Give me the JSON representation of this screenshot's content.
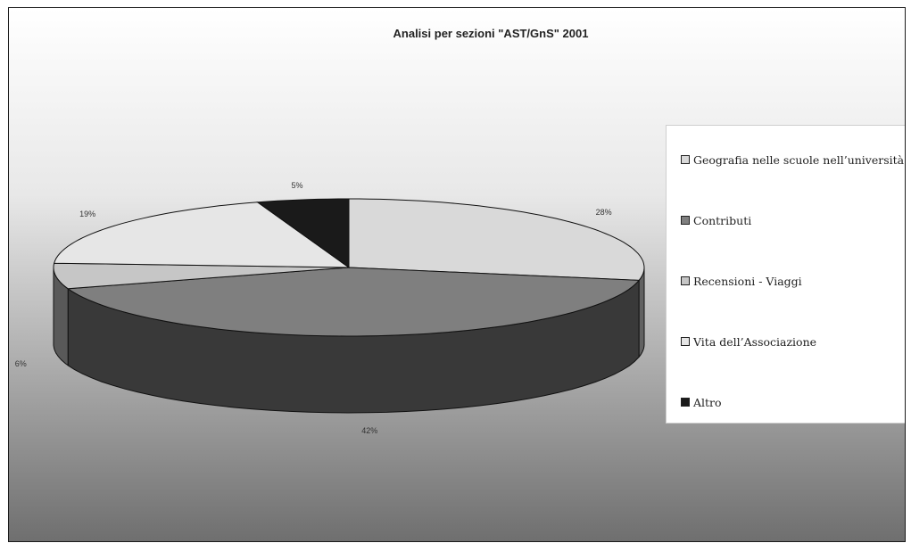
{
  "chart_data": {
    "type": "pie",
    "title": "Analisi per sezioni \"AST/GnS\" 2001",
    "categories": [
      "Geografia nelle scuole nell’università",
      "Contributi",
      "Recensioni - Viaggi",
      "Vita dell’Associazione",
      "Altro"
    ],
    "values": [
      28,
      42,
      6,
      19,
      5
    ],
    "value_labels": [
      "28%",
      "42%",
      "6%",
      "19%",
      "5%"
    ],
    "colors": [
      "#d9d9d9",
      "#7f7f7f",
      "#c6c6c6",
      "#e6e6e6",
      "#1a1a1a"
    ],
    "legend_position": "right",
    "style": "3d-pie",
    "background": "gradient light-to-dark gray"
  }
}
